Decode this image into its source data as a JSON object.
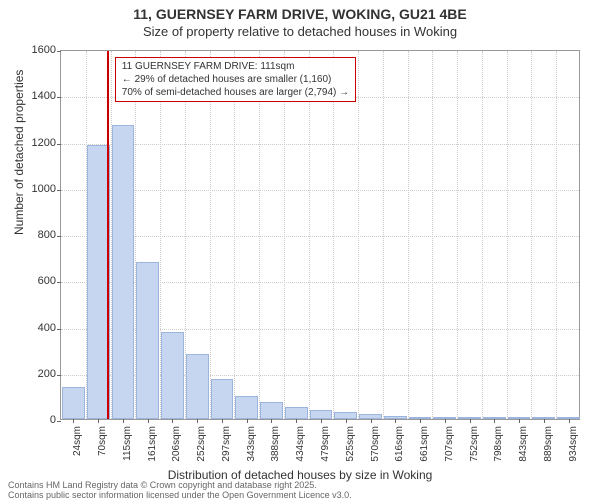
{
  "title_main": "11, GUERNSEY FARM DRIVE, WOKING, GU21 4BE",
  "title_sub": "Size of property relative to detached houses in Woking",
  "y_axis_label": "Number of detached properties",
  "x_axis_label": "Distribution of detached houses by size in Woking",
  "chart": {
    "type": "histogram",
    "bar_color": "#c7d6f0",
    "bar_border": "#9db4dd",
    "grid_color": "#cccccc",
    "background": "#ffffff",
    "ylim": [
      0,
      1600
    ],
    "ytick_step": 200,
    "x_ticks": [
      "24sqm",
      "70sqm",
      "115sqm",
      "161sqm",
      "206sqm",
      "252sqm",
      "297sqm",
      "343sqm",
      "388sqm",
      "434sqm",
      "479sqm",
      "525sqm",
      "570sqm",
      "616sqm",
      "661sqm",
      "707sqm",
      "752sqm",
      "798sqm",
      "843sqm",
      "889sqm",
      "934sqm"
    ],
    "bars": [
      140,
      1185,
      1270,
      680,
      375,
      280,
      175,
      100,
      75,
      50,
      40,
      30,
      20,
      12,
      8,
      5,
      3,
      2,
      2,
      1,
      1
    ],
    "ref_line": {
      "x_index": 1.85,
      "color": "#cc0000"
    },
    "annotation": {
      "lines": [
        "11 GUERNSEY FARM DRIVE: 111sqm",
        "← 29% of detached houses are smaller (1,160)",
        "70% of semi-detached houses are larger (2,794) →"
      ],
      "border_color": "#cc0000"
    }
  },
  "footer1": "Contains HM Land Registry data © Crown copyright and database right 2025.",
  "footer2": "Contains public sector information licensed under the Open Government Licence v3.0."
}
